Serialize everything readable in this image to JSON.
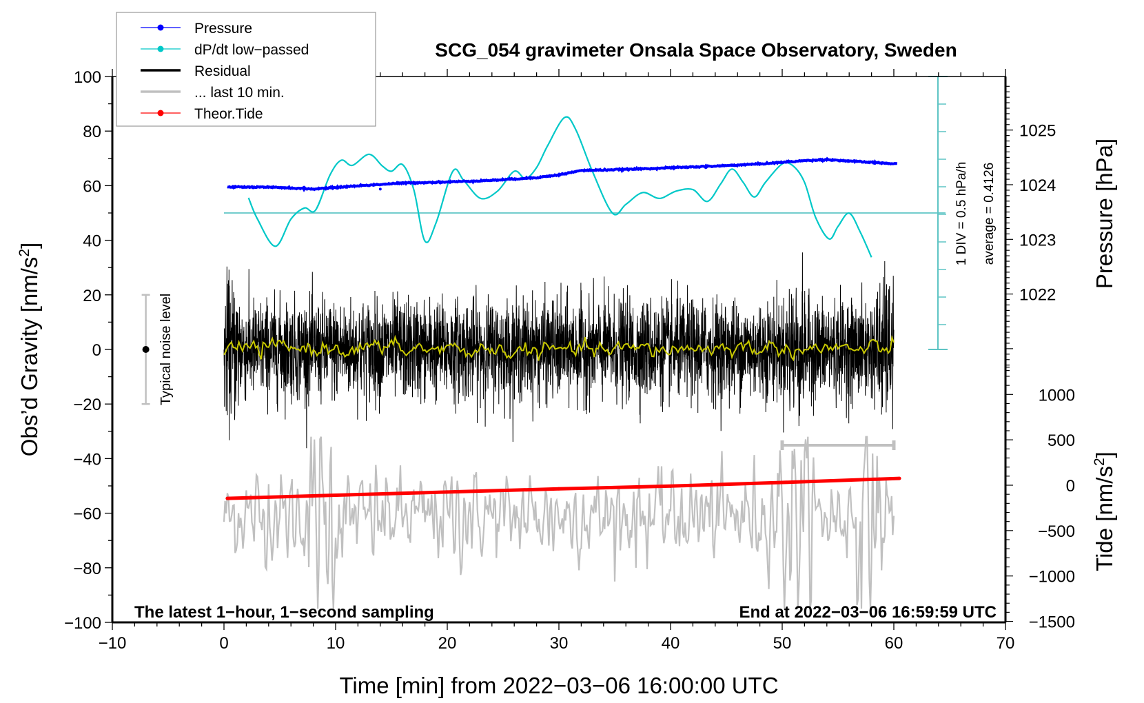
{
  "chart_data": {
    "type": "line",
    "title": "SCG_054 gravimeter Onsala Space Observatory, Sweden",
    "xlabel": "Time [min] from 2022−03−06 16:00:00 UTC",
    "ylabel_left": "Obs’d Gravity [nm/s²]",
    "ylabel_right_top": "Pressure [hPa]",
    "ylabel_right_bottom": "Tide [nm/s²]",
    "xlim": [
      -10,
      70
    ],
    "ylim_left": [
      -100,
      100
    ],
    "pressure_ylim": [
      1020.6,
      1025.8
    ],
    "tide_ylim": [
      -1500,
      1500
    ],
    "x_ticks": [
      -10,
      0,
      10,
      20,
      30,
      40,
      50,
      60,
      70
    ],
    "x_tick_labels": [
      "−10",
      "0",
      "10",
      "20",
      "30",
      "40",
      "50",
      "60",
      "70"
    ],
    "y_left_ticks": [
      100,
      80,
      60,
      40,
      20,
      0,
      -20,
      -40,
      -60,
      -80,
      -100
    ],
    "y_left_tick_labels": [
      "100",
      "80",
      "60",
      "40",
      "20",
      "0",
      "−20",
      "−40",
      "−60",
      "−80",
      "−100"
    ],
    "pressure_ticks": [
      1025,
      1024,
      1023,
      1022
    ],
    "pressure_tick_labels": [
      "1025",
      "1024",
      "1023",
      "1022"
    ],
    "tide_ticks": [
      1000,
      500,
      0,
      -500,
      -1000,
      -1500
    ],
    "tide_tick_labels": [
      "1000",
      "500",
      "0",
      "−500",
      "−1000",
      "−1500"
    ],
    "grid": false,
    "legend_position": "top-left",
    "legend": [
      {
        "label": "Pressure",
        "color": "#0000ff",
        "style": "line-dot"
      },
      {
        "label": "dP/dt low−passed",
        "color": "#00c8c8",
        "style": "line-dot"
      },
      {
        "label": "Residual",
        "color": "#000000",
        "style": "line"
      },
      {
        "label": "... last 10 min.",
        "color": "#c0c0c0",
        "style": "line"
      },
      {
        "label": "Theor.Tide",
        "color": "#ff0000",
        "style": "line-dot"
      }
    ],
    "annotations": {
      "bottom_left": "The latest 1−hour, 1−second sampling",
      "bottom_right": "End at 2022−03−06 16:59:59 UTC",
      "dpdt_scale": "1 DIV = 0.5 hPa/h",
      "dpdt_average": "average = 0.4126",
      "noise_label": "Typical noise level",
      "noise_bar": {
        "x": -7,
        "center": 0,
        "half_range": 20
      },
      "last10_bar": {
        "x_start": 50,
        "x_end": 60,
        "y": 33
      }
    },
    "series": [
      {
        "name": "Pressure",
        "axis": "pressure",
        "color": "#0000ff",
        "x": [
          0.3,
          5,
          8,
          12,
          16,
          20,
          24,
          28,
          30,
          32,
          36,
          40,
          44,
          48,
          52,
          54,
          57,
          60.3
        ],
        "values": [
          1023.96,
          1023.95,
          1023.92,
          1023.98,
          1024.03,
          1024.05,
          1024.08,
          1024.13,
          1024.18,
          1024.26,
          1024.28,
          1024.31,
          1024.34,
          1024.38,
          1024.44,
          1024.46,
          1024.42,
          1024.38
        ]
      },
      {
        "name": "dP/dt low−passed",
        "axis": "dpdt_hPa_per_h",
        "baseline_average": 0.4126,
        "color": "#00c8c8",
        "x": [
          2.2,
          3,
          4.6,
          6,
          7.2,
          8.2,
          9.5,
          10.5,
          11.5,
          13,
          14.2,
          15,
          16,
          17,
          18,
          19,
          20.5,
          21.5,
          23,
          24.5,
          26,
          27,
          28,
          29,
          30.5,
          31.5,
          33,
          34.8,
          36,
          37.5,
          39,
          40.5,
          42,
          43.3,
          44.5,
          45.5,
          46.5,
          47.5,
          48.5,
          50,
          51,
          52,
          53,
          54.2,
          55,
          56,
          57,
          58
        ],
        "values": [
          0.689,
          0.302,
          -0.191,
          0.302,
          0.502,
          0.462,
          1.102,
          1.369,
          1.276,
          1.476,
          1.262,
          1.169,
          1.289,
          0.836,
          -0.097,
          0.236,
          1.169,
          0.996,
          0.676,
          0.809,
          1.169,
          1.036,
          1.236,
          1.636,
          2.142,
          1.929,
          1.169,
          0.409,
          0.569,
          0.782,
          0.676,
          0.809,
          0.836,
          0.622,
          0.942,
          1.209,
          0.969,
          0.702,
          0.969,
          1.302,
          1.262,
          0.969,
          0.329,
          -0.058,
          0.169,
          0.409,
          0.062,
          -0.391
        ]
      },
      {
        "name": "Residual",
        "axis": "left",
        "color": "#000000",
        "x_range": [
          0,
          60
        ],
        "sampling_s": 1,
        "typical_range": [
          -30,
          35
        ],
        "extremes": {
          "min": -42,
          "max": 37
        }
      },
      {
        "name": "Residual smoothed",
        "axis": "left",
        "color": "#c8c800",
        "x_range": [
          0,
          60
        ],
        "typical_range": [
          -4,
          4
        ]
      },
      {
        "name": "... last 10 min.",
        "axis": "left",
        "color": "#c0c0c0",
        "x_range": [
          0,
          60
        ],
        "center": -61,
        "typical_range": [
          -90,
          -40
        ],
        "extremes": {
          "min": -93,
          "max": -33
        }
      },
      {
        "name": "Theor.Tide",
        "axis": "tide",
        "color": "#ff0000",
        "x": [
          0.3,
          10,
          20,
          30,
          40,
          50,
          60.5
        ],
        "values": [
          -145,
          -110,
          -75,
          -40,
          -10,
          30,
          75
        ]
      }
    ]
  }
}
